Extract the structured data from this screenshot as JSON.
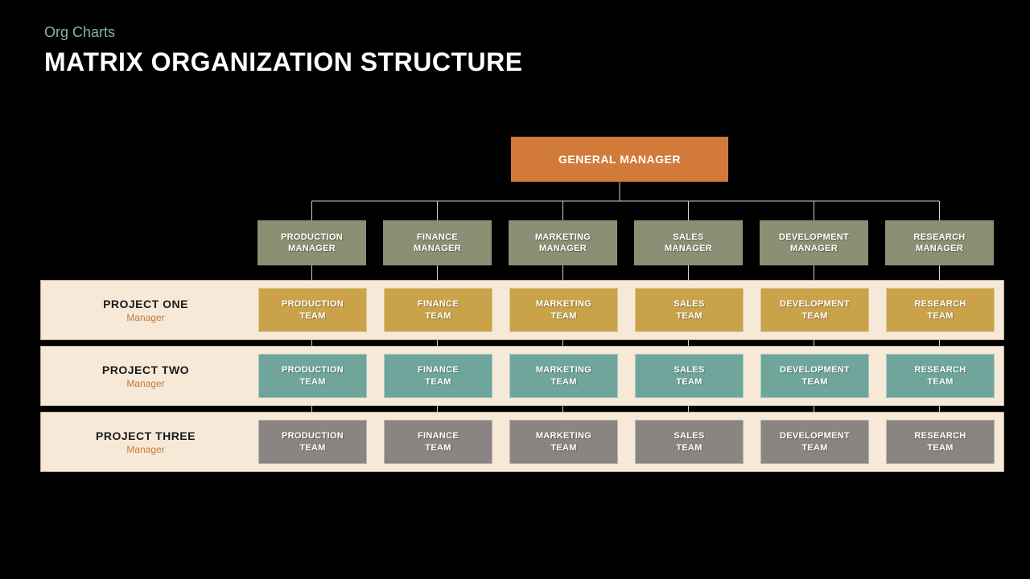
{
  "header": {
    "subtitle": "Org Charts",
    "subtitle_color": "#7fb89e",
    "title": "MATRIX ORGANIZATION STRUCTURE",
    "title_color": "#ffffff"
  },
  "background_color": "#000000",
  "general_manager": {
    "label": "GENERAL MANAGER",
    "bg_color": "#d17a3a",
    "text_color": "#ffffff"
  },
  "connector_color": "#cfcfcf",
  "departments": {
    "bg_color": "#8b9074",
    "text_color": "#ffffff",
    "items": [
      {
        "line1": "PRODUCTION",
        "line2": "MANAGER"
      },
      {
        "line1": "FINANCE",
        "line2": "MANAGER"
      },
      {
        "line1": "MARKETING",
        "line2": "MANAGER"
      },
      {
        "line1": "SALES",
        "line2": "MANAGER"
      },
      {
        "line1": "DEVELOPMENT",
        "line2": "MANAGER"
      },
      {
        "line1": "RESEARCH",
        "line2": "MANAGER"
      }
    ]
  },
  "project_band": {
    "bg_color": "#f7e9d7",
    "name_color": "#1a1a1a",
    "role_color": "#c27a3c"
  },
  "projects": [
    {
      "name": "PROJECT ONE",
      "role": "Manager",
      "team_bg": "#c9a24a",
      "teams": [
        {
          "line1": "PRODUCTION",
          "line2": "TEAM"
        },
        {
          "line1": "FINANCE",
          "line2": "TEAM"
        },
        {
          "line1": "MARKETING",
          "line2": "TEAM"
        },
        {
          "line1": "SALES",
          "line2": "TEAM"
        },
        {
          "line1": "DEVELOPMENT",
          "line2": "TEAM"
        },
        {
          "line1": "RESEARCH",
          "line2": "TEAM"
        }
      ]
    },
    {
      "name": "PROJECT TWO",
      "role": "Manager",
      "team_bg": "#6fa59a",
      "teams": [
        {
          "line1": "PRODUCTION",
          "line2": "TEAM"
        },
        {
          "line1": "FINANCE",
          "line2": "TEAM"
        },
        {
          "line1": "MARKETING",
          "line2": "TEAM"
        },
        {
          "line1": "SALES",
          "line2": "TEAM"
        },
        {
          "line1": "DEVELOPMENT",
          "line2": "TEAM"
        },
        {
          "line1": "RESEARCH",
          "line2": "TEAM"
        }
      ]
    },
    {
      "name": "PROJECT THREE",
      "role": "Manager",
      "team_bg": "#8a8482",
      "teams": [
        {
          "line1": "PRODUCTION",
          "line2": "TEAM"
        },
        {
          "line1": "FINANCE",
          "line2": "TEAM"
        },
        {
          "line1": "MARKETING",
          "line2": "TEAM"
        },
        {
          "line1": "SALES",
          "line2": "TEAM"
        },
        {
          "line1": "DEVELOPMENT",
          "line2": "TEAM"
        },
        {
          "line1": "RESEARCH",
          "line2": "TEAM"
        }
      ]
    }
  ]
}
